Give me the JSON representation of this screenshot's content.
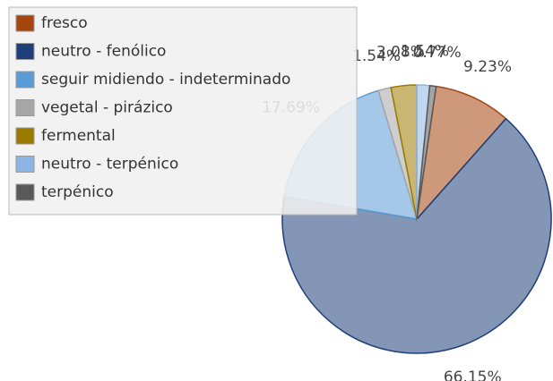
{
  "chart_data": {
    "type": "pie",
    "categories": [
      "fresco",
      "neutro - fenólico",
      "seguir midiendo - indeterminado",
      "vegetal - pirázico",
      "fermental",
      "neutro - terpénico",
      "terpénico"
    ],
    "values": [
      9.23,
      66.15,
      17.69,
      1.54,
      3.08,
      1.54,
      0.77
    ],
    "value_labels": [
      "9.23%",
      "66.15%",
      "17.69%",
      "1.54%",
      "3.08%",
      "1.54%",
      "0.77%"
    ],
    "colors": [
      "#a5450f",
      "#1f3f7a",
      "#5b9bd5",
      "#a6a6a6",
      "#9c7a00",
      "#8eb4e3",
      "#595959"
    ],
    "legend": "top-left"
  }
}
